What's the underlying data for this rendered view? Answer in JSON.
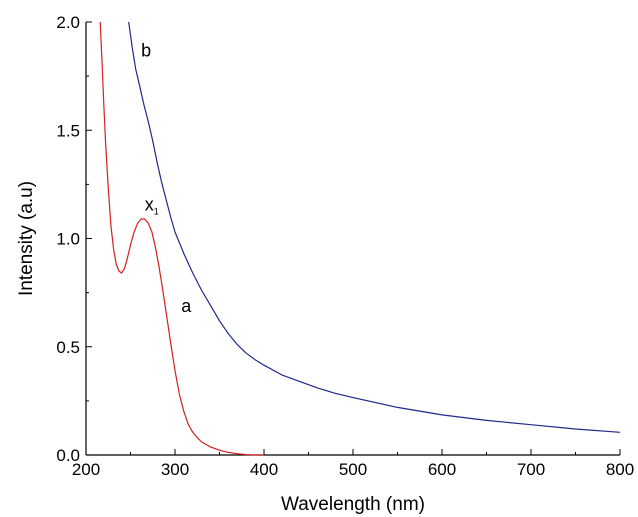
{
  "chart_data": {
    "type": "line",
    "title": "",
    "xlabel": "Wavelength (nm)",
    "ylabel": "Intensity (a.u)",
    "xlim": [
      200,
      800
    ],
    "ylim": [
      0.0,
      2.0
    ],
    "xticks": [
      200,
      300,
      400,
      500,
      600,
      700,
      800
    ],
    "xtick_labels": [
      "200",
      "300",
      "400",
      "500",
      "600",
      "700",
      "800"
    ],
    "yticks": [
      0.0,
      0.5,
      1.0,
      1.5,
      2.0
    ],
    "ytick_labels": [
      "0.0",
      "0.5",
      "1.0",
      "1.5",
      "2.0"
    ],
    "grid": false,
    "legend": "none",
    "series": [
      {
        "name": "a",
        "color": "#d42020",
        "x": [
          216,
          218,
          220,
          222,
          225,
          228,
          231,
          234,
          237,
          240,
          243,
          246,
          250,
          254,
          258,
          262,
          266,
          270,
          274,
          278,
          282,
          286,
          290,
          295,
          300,
          305,
          310,
          315,
          320,
          325,
          330,
          340,
          350,
          360,
          370,
          380,
          390,
          400
        ],
        "y": [
          2.0,
          1.82,
          1.62,
          1.44,
          1.23,
          1.06,
          0.95,
          0.88,
          0.85,
          0.84,
          0.86,
          0.9,
          0.97,
          1.03,
          1.07,
          1.09,
          1.09,
          1.07,
          1.03,
          0.96,
          0.87,
          0.77,
          0.66,
          0.52,
          0.39,
          0.28,
          0.2,
          0.14,
          0.105,
          0.08,
          0.06,
          0.037,
          0.022,
          0.012,
          0.006,
          0.002,
          0.0,
          0.0
        ]
      },
      {
        "name": "b",
        "color": "#1f2a8a",
        "x": [
          248,
          252,
          256,
          260,
          265,
          270,
          275,
          280,
          285,
          290,
          295,
          300,
          310,
          320,
          330,
          340,
          350,
          360,
          370,
          380,
          390,
          400,
          420,
          440,
          460,
          480,
          500,
          550,
          600,
          650,
          700,
          750,
          800
        ],
        "y": [
          2.0,
          1.88,
          1.78,
          1.71,
          1.62,
          1.54,
          1.45,
          1.35,
          1.26,
          1.18,
          1.1,
          1.03,
          0.93,
          0.84,
          0.76,
          0.69,
          0.62,
          0.56,
          0.51,
          0.47,
          0.44,
          0.415,
          0.37,
          0.34,
          0.31,
          0.285,
          0.265,
          0.22,
          0.185,
          0.16,
          0.14,
          0.12,
          0.105
        ]
      }
    ],
    "annotations": [
      {
        "text": "b",
        "x": 262,
        "y": 1.84
      },
      {
        "text": "x",
        "sub": "1",
        "x": 266,
        "y": 1.13
      },
      {
        "text": "a",
        "x": 307,
        "y": 0.66
      }
    ]
  }
}
